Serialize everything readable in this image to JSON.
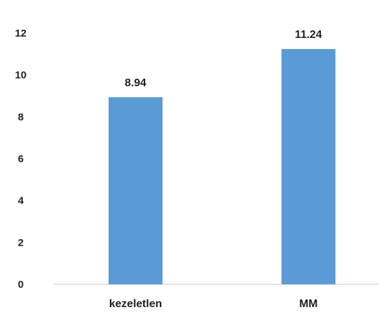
{
  "chart_data": {
    "type": "bar",
    "title": "",
    "xlabel": "",
    "ylabel": "",
    "categories": [
      "kezeletlen",
      "MM"
    ],
    "values": [
      8.94,
      11.24
    ],
    "data_labels": [
      "8.94",
      "11.24"
    ],
    "yticks": [
      "0",
      "2",
      "4",
      "6",
      "8",
      "10",
      "12"
    ],
    "ylim": [
      0,
      12
    ],
    "grid": false,
    "legend": "none",
    "bar_color": "#5b9bd5",
    "axis_color": "#d9d9d9"
  }
}
